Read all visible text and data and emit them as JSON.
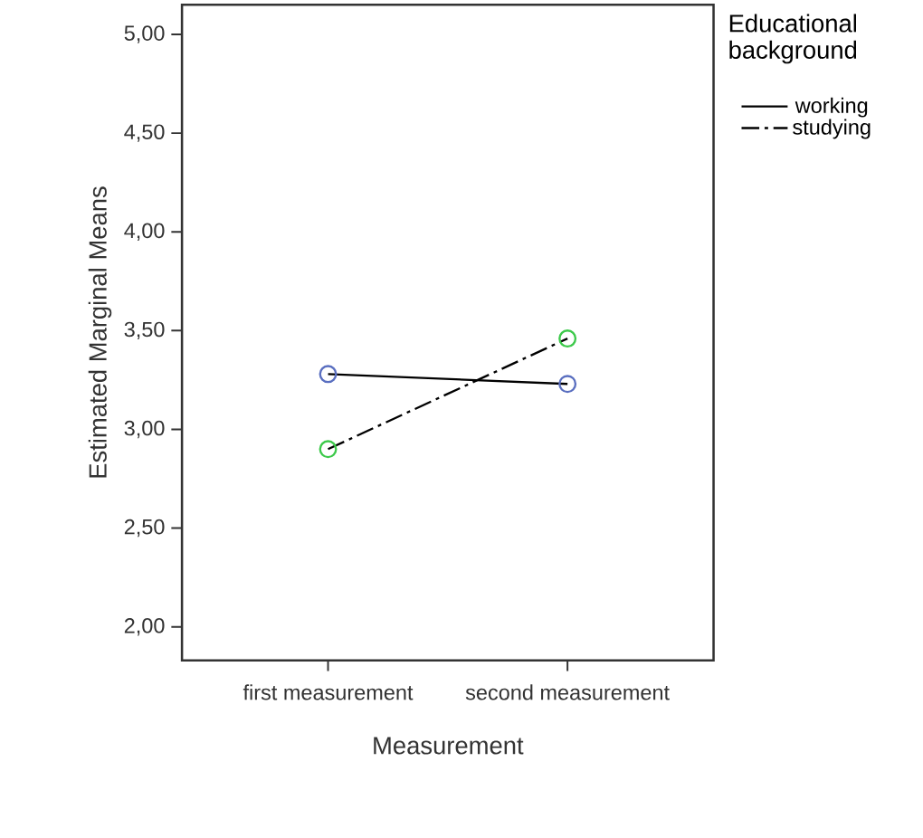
{
  "chart_data": {
    "type": "line",
    "xlabel": "Measurement",
    "ylabel": "Estimated Marginal Means",
    "legend_title": "Educational background",
    "categories": [
      "first measurement",
      "second measurement"
    ],
    "series": [
      {
        "name": "working",
        "color": "#5a6fc0",
        "values": [
          3.28,
          3.23
        ],
        "line_style": "solid"
      },
      {
        "name": "studying",
        "color": "#3cc94a",
        "values": [
          2.9,
          3.46
        ],
        "line_style": "dashed"
      }
    ],
    "ylim": [
      1.83,
      5.15
    ],
    "yticks": [
      {
        "value": 2,
        "label": "2,00"
      },
      {
        "value": 2.5,
        "label": "2,50"
      },
      {
        "value": 3,
        "label": "3,00"
      },
      {
        "value": 3.5,
        "label": "3,50"
      },
      {
        "value": 4,
        "label": "4,00"
      },
      {
        "value": 4.5,
        "label": "4,50"
      },
      {
        "value": 5,
        "label": "5,00"
      }
    ],
    "marker": "circle",
    "legend": "top right",
    "grid": false
  }
}
